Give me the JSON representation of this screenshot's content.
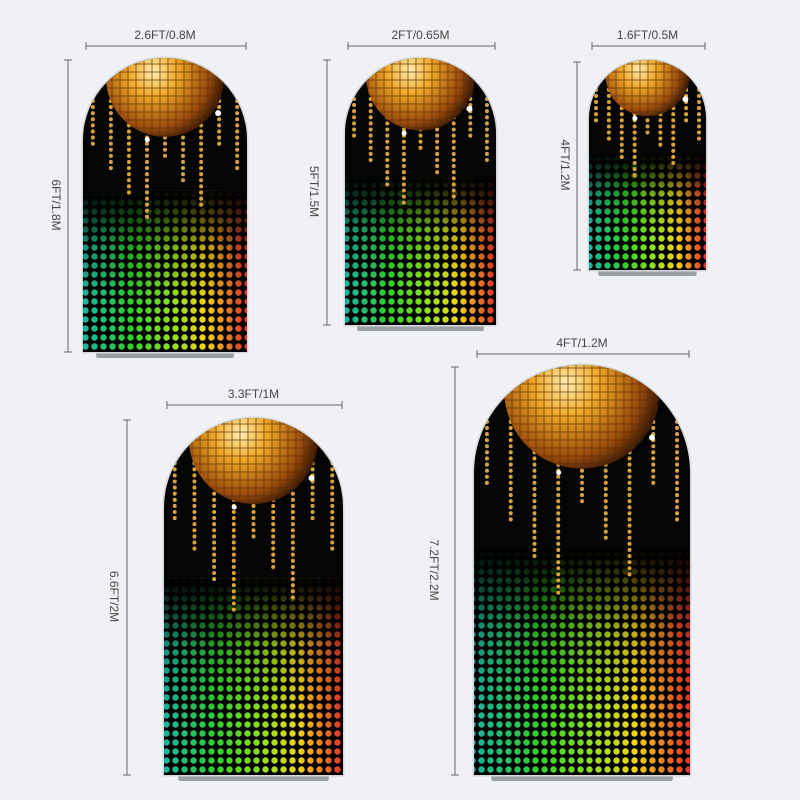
{
  "items": [
    {
      "width": "2.6FT/0.8M",
      "height": "6FT/1.8M"
    },
    {
      "width": "2FT/0.65M",
      "height": "5FT/1.5M"
    },
    {
      "width": "1.6FT/0.5M",
      "height": "4FT/1.2M"
    },
    {
      "width": "3.3FT/1M",
      "height": "6.6FT/2M"
    },
    {
      "width": "4FT/1.2M",
      "height": "7.2FT/2.2M"
    }
  ]
}
